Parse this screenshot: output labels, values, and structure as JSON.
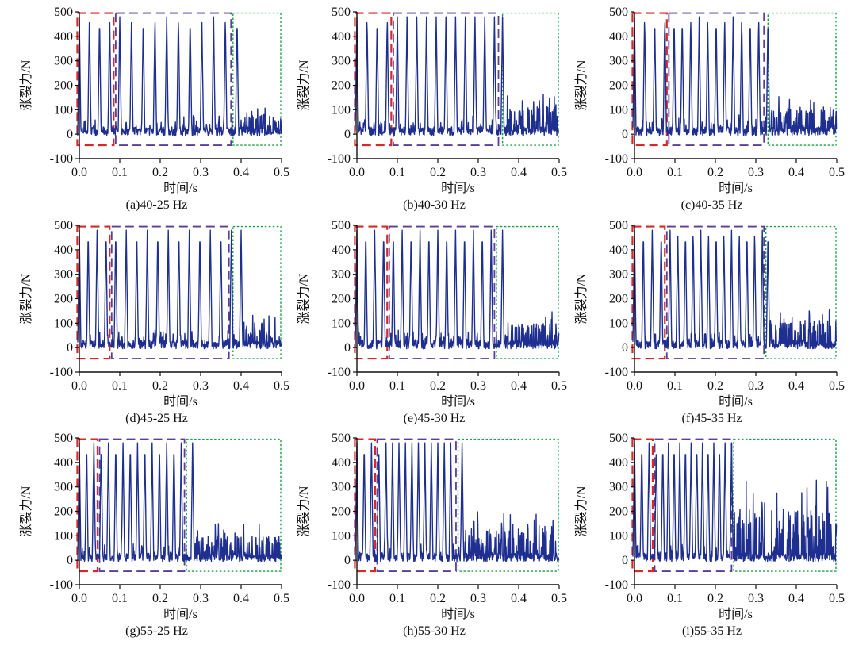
{
  "figure": {
    "ylabel": "涨裂力/N",
    "xlabel": "时间/s",
    "ylim": [
      -100,
      500
    ],
    "xlim": [
      0.0,
      0.5
    ],
    "colors": {
      "signal": "#1f2f8f",
      "stage1_box": "#d42a2a",
      "stage2_box": "#5a3e99",
      "stage3_box": "#1aa14a"
    }
  },
  "chart_data": [
    {
      "type": "line",
      "caption": "(a)40-25 Hz",
      "xlabel": "时间/s",
      "ylabel": "涨裂力/N",
      "x_ticks": [
        "0.0",
        "0.1",
        "0.2",
        "0.3",
        "0.4",
        "0.5"
      ],
      "y_ticks": [
        "500",
        "400",
        "300",
        "200",
        "100",
        "0",
        "-100"
      ],
      "xlim": [
        0.0,
        0.5
      ],
      "ylim": [
        -100,
        500
      ],
      "impact_peaks_s": [
        0.0,
        0.025,
        0.05,
        0.075,
        0.1,
        0.129,
        0.158,
        0.187,
        0.216,
        0.245,
        0.274,
        0.303,
        0.332,
        0.361,
        0.39
      ],
      "peak_force_N": 480,
      "baseline_N": [
        -5,
        30
      ],
      "tail_start_s": 0.39,
      "tail_max_N": 120,
      "regions_s": [
        [
          -0.005,
          0.085
        ],
        [
          0.09,
          0.375
        ],
        [
          0.38,
          0.5
        ]
      ]
    },
    {
      "type": "line",
      "caption": "(b)40-30 Hz",
      "xlabel": "时间/s",
      "ylabel": "涨裂力/N",
      "x_ticks": [
        "0.0",
        "0.1",
        "0.2",
        "0.3",
        "0.4",
        "0.5"
      ],
      "y_ticks": [
        "500",
        "400",
        "300",
        "200",
        "100",
        "0",
        "-100"
      ],
      "xlim": [
        0.0,
        0.5
      ],
      "ylim": [
        -100,
        500
      ],
      "impact_peaks_s": [
        0.0,
        0.025,
        0.05,
        0.075,
        0.1,
        0.124,
        0.148,
        0.172,
        0.196,
        0.22,
        0.244,
        0.268,
        0.292,
        0.316,
        0.34,
        0.36
      ],
      "peak_force_N": 480,
      "baseline_N": [
        -5,
        30
      ],
      "tail_start_s": 0.36,
      "tail_max_N": 170,
      "regions_s": [
        [
          -0.005,
          0.085
        ],
        [
          0.09,
          0.35
        ],
        [
          0.36,
          0.5
        ]
      ]
    },
    {
      "type": "line",
      "caption": "(c)40-35 Hz",
      "xlabel": "时间/s",
      "ylabel": "涨裂力/N",
      "x_ticks": [
        "0.0",
        "0.1",
        "0.2",
        "0.3",
        "0.4",
        "0.5"
      ],
      "y_ticks": [
        "500",
        "400",
        "300",
        "200",
        "100",
        "0",
        "-100"
      ],
      "xlim": [
        0.0,
        0.5
      ],
      "ylim": [
        -100,
        500
      ],
      "impact_peaks_s": [
        0.0,
        0.025,
        0.05,
        0.075,
        0.098,
        0.118,
        0.139,
        0.16,
        0.181,
        0.202,
        0.223,
        0.244,
        0.265,
        0.286,
        0.307,
        0.33
      ],
      "peak_force_N": 480,
      "baseline_N": [
        -5,
        30
      ],
      "tail_start_s": 0.33,
      "tail_max_N": 160,
      "regions_s": [
        [
          -0.005,
          0.08
        ],
        [
          0.085,
          0.32
        ],
        [
          0.33,
          0.5
        ]
      ]
    },
    {
      "type": "line",
      "caption": "(d)45-25 Hz",
      "xlabel": "时间/s",
      "ylabel": "涨裂力/N",
      "x_ticks": [
        "0.0",
        "0.1",
        "0.2",
        "0.3",
        "0.4",
        "0.5"
      ],
      "y_ticks": [
        "500",
        "400",
        "300",
        "200",
        "100",
        "0",
        "-100"
      ],
      "xlim": [
        0.0,
        0.5
      ],
      "ylim": [
        -100,
        500
      ],
      "impact_peaks_s": [
        0.0,
        0.022,
        0.044,
        0.066,
        0.09,
        0.116,
        0.142,
        0.168,
        0.194,
        0.22,
        0.246,
        0.272,
        0.298,
        0.324,
        0.35,
        0.376,
        0.4
      ],
      "peak_force_N": 480,
      "baseline_N": [
        -5,
        30
      ],
      "tail_start_s": 0.4,
      "tail_max_N": 160,
      "regions_s": [
        [
          -0.005,
          0.075
        ],
        [
          0.08,
          0.37
        ],
        [
          0.38,
          0.5
        ]
      ]
    },
    {
      "type": "line",
      "caption": "(e)45-30 Hz",
      "xlabel": "时间/s",
      "ylabel": "涨裂力/N",
      "x_ticks": [
        "0.0",
        "0.1",
        "0.2",
        "0.3",
        "0.4",
        "0.5"
      ],
      "y_ticks": [
        "500",
        "400",
        "300",
        "200",
        "100",
        "0",
        "-100"
      ],
      "xlim": [
        0.0,
        0.5
      ],
      "ylim": [
        -100,
        500
      ],
      "impact_peaks_s": [
        0.0,
        0.022,
        0.044,
        0.066,
        0.09,
        0.112,
        0.134,
        0.156,
        0.178,
        0.2,
        0.222,
        0.244,
        0.266,
        0.288,
        0.31,
        0.332,
        0.36
      ],
      "peak_force_N": 480,
      "baseline_N": [
        -5,
        30
      ],
      "tail_start_s": 0.36,
      "tail_max_N": 150,
      "regions_s": [
        [
          -0.005,
          0.075
        ],
        [
          0.08,
          0.34
        ],
        [
          0.345,
          0.5
        ]
      ]
    },
    {
      "type": "line",
      "caption": "(f)45-35 Hz",
      "xlabel": "时间/s",
      "ylabel": "涨裂力/N",
      "x_ticks": [
        "0.0",
        "0.1",
        "0.2",
        "0.3",
        "0.4",
        "0.5"
      ],
      "y_ticks": [
        "500",
        "400",
        "300",
        "200",
        "100",
        "0",
        "-100"
      ],
      "xlim": [
        0.0,
        0.5
      ],
      "ylim": [
        -100,
        500
      ],
      "impact_peaks_s": [
        0.0,
        0.022,
        0.044,
        0.066,
        0.088,
        0.107,
        0.126,
        0.145,
        0.164,
        0.183,
        0.202,
        0.221,
        0.24,
        0.259,
        0.278,
        0.297,
        0.316,
        0.33
      ],
      "peak_force_N": 480,
      "baseline_N": [
        -5,
        30
      ],
      "tail_start_s": 0.33,
      "tail_max_N": 170,
      "regions_s": [
        [
          -0.005,
          0.075
        ],
        [
          0.08,
          0.32
        ],
        [
          0.325,
          0.5
        ]
      ]
    },
    {
      "type": "line",
      "caption": "(g)55-25 Hz",
      "xlabel": "时间/s",
      "ylabel": "涨裂力/N",
      "x_ticks": [
        "0.0",
        "0.1",
        "0.2",
        "0.3",
        "0.4",
        "0.5"
      ],
      "y_ticks": [
        "500",
        "400",
        "300",
        "200",
        "100",
        "0",
        "-100"
      ],
      "xlim": [
        0.0,
        0.5
      ],
      "ylim": [
        -100,
        500
      ],
      "impact_peaks_s": [
        0.0,
        0.018,
        0.036,
        0.054,
        0.072,
        0.09,
        0.108,
        0.126,
        0.144,
        0.162,
        0.18,
        0.198,
        0.216,
        0.234,
        0.252,
        0.28
      ],
      "peak_force_N": 480,
      "baseline_N": [
        -5,
        30
      ],
      "tail_start_s": 0.28,
      "tail_max_N": 150,
      "regions_s": [
        [
          -0.005,
          0.045
        ],
        [
          0.05,
          0.26
        ],
        [
          0.265,
          0.5
        ]
      ]
    },
    {
      "type": "line",
      "caption": "(h)55-30 Hz",
      "xlabel": "时间/s",
      "ylabel": "涨裂力/N",
      "x_ticks": [
        "0.0",
        "0.1",
        "0.2",
        "0.3",
        "0.4",
        "0.5"
      ],
      "y_ticks": [
        "500",
        "400",
        "300",
        "200",
        "100",
        "0",
        "-100"
      ],
      "xlim": [
        0.0,
        0.5
      ],
      "ylim": [
        -100,
        500
      ],
      "impact_peaks_s": [
        0.0,
        0.018,
        0.036,
        0.054,
        0.072,
        0.088,
        0.104,
        0.12,
        0.136,
        0.152,
        0.168,
        0.184,
        0.2,
        0.216,
        0.232,
        0.26
      ],
      "peak_force_N": 480,
      "baseline_N": [
        -5,
        30
      ],
      "tail_start_s": 0.26,
      "tail_max_N": 200,
      "regions_s": [
        [
          -0.005,
          0.045
        ],
        [
          0.05,
          0.245
        ],
        [
          0.25,
          0.5
        ]
      ]
    },
    {
      "type": "line",
      "caption": "(i)55-35 Hz",
      "xlabel": "时间/s",
      "ylabel": "涨裂力/N",
      "x_ticks": [
        "0.0",
        "0.1",
        "0.2",
        "0.3",
        "0.4",
        "0.5"
      ],
      "y_ticks": [
        "500",
        "400",
        "300",
        "200",
        "100",
        "0",
        "-100"
      ],
      "xlim": [
        0.0,
        0.5
      ],
      "ylim": [
        -100,
        500
      ],
      "impact_peaks_s": [
        0.0,
        0.018,
        0.036,
        0.054,
        0.07,
        0.084,
        0.098,
        0.112,
        0.126,
        0.14,
        0.154,
        0.168,
        0.182,
        0.196,
        0.21,
        0.224,
        0.24
      ],
      "peak_force_N": 480,
      "baseline_N": [
        -5,
        30
      ],
      "tail_start_s": 0.24,
      "tail_max_N": 330,
      "regions_s": [
        [
          -0.005,
          0.045
        ],
        [
          0.05,
          0.24
        ],
        [
          0.245,
          0.5
        ]
      ]
    }
  ]
}
